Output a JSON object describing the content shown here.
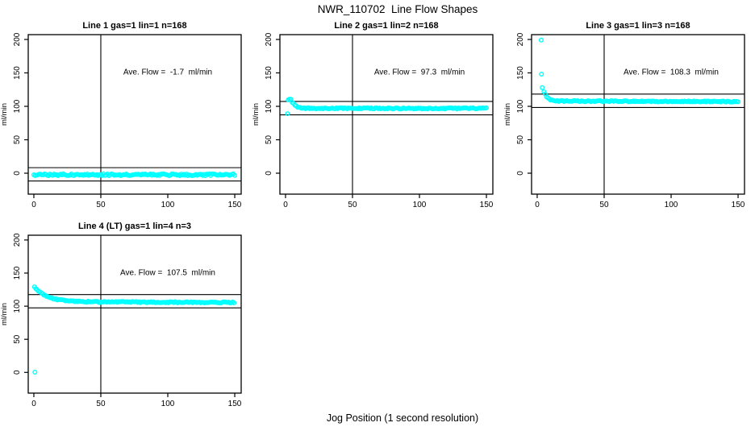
{
  "figure": {
    "title": "NWR_110702  Line Flow Shapes",
    "xlabel": "Jog Position (1 second resolution)",
    "background_color": "#ffffff",
    "point_color": "#00ffff",
    "axis_color": "#000000",
    "ref_line_color": "#000000"
  },
  "chart_data": [
    {
      "type": "scatter",
      "panel": "top-left",
      "title": "Line 1 gas=1 lin=1 n=168",
      "annotation": "Ave. Flow =  -1.7  ml/min",
      "ave_flow_ml_min": -1.7,
      "n": 168,
      "ylabel": "ml/min",
      "xticks": [
        0,
        50,
        100,
        150
      ],
      "yticks": [
        0,
        50,
        100,
        150,
        200
      ],
      "xlim": [
        -4.2,
        154.8
      ],
      "ylim": [
        -31.3,
        207.2
      ],
      "vline_x": 50,
      "hlines_y": [
        8.3,
        -11.7
      ],
      "annotation_center": {
        "x": 100,
        "y": 150
      },
      "series": {
        "name": "flow",
        "marker": "open-circle",
        "t_start": 0,
        "t_end": 150,
        "step": 1,
        "steady_y": -2.3,
        "start_amp": 0,
        "flat_until": 0,
        "decay_tau": 1,
        "slope": 0,
        "noise": 1.4,
        "seed": 11
      },
      "outliers": []
    },
    {
      "type": "scatter",
      "panel": "top-middle",
      "title": "Line 2 gas=1 lin=2 n=168",
      "annotation": "Ave. Flow =  97.3  ml/min",
      "ave_flow_ml_min": 97.3,
      "n": 168,
      "ylabel": "ml/min",
      "xticks": [
        0,
        50,
        100,
        150
      ],
      "yticks": [
        0,
        50,
        100,
        150,
        200
      ],
      "xlim": [
        -4.2,
        154.8
      ],
      "ylim": [
        -31.3,
        207.2
      ],
      "vline_x": 50,
      "hlines_y": [
        107.3,
        87.3
      ],
      "annotation_center": {
        "x": 100,
        "y": 150
      },
      "series": {
        "name": "flow",
        "marker": "open-circle",
        "t_start": 2,
        "t_end": 150,
        "step": 1,
        "steady_y": 96.9,
        "start_amp": 13.5,
        "flat_until": 4,
        "decay_tau": 3,
        "slope": 0,
        "noise": 0.9,
        "seed": 22
      },
      "outliers": [
        [
          1.5,
          89
        ]
      ]
    },
    {
      "type": "scatter",
      "panel": "top-right",
      "title": "Line 3 gas=1 lin=3 n=168",
      "annotation": "Ave. Flow =  108.3  ml/min",
      "ave_flow_ml_min": 108.3,
      "n": 168,
      "ylabel": "ml/min",
      "xticks": [
        0,
        50,
        100,
        150
      ],
      "yticks": [
        0,
        50,
        100,
        150,
        200
      ],
      "xlim": [
        -4.2,
        154.8
      ],
      "ylim": [
        -31.3,
        207.2
      ],
      "vline_x": 50,
      "hlines_y": [
        118.3,
        98.3
      ],
      "annotation_center": {
        "x": 100,
        "y": 150
      },
      "series": {
        "name": "flow",
        "marker": "open-circle",
        "t_start": 5,
        "t_end": 150,
        "step": 1,
        "steady_y": 108.0,
        "start_amp": 13.5,
        "flat_until": 5.5,
        "decay_tau": 2.2,
        "slope": -0.006,
        "noise": 0.8,
        "seed": 33
      },
      "outliers": [
        [
          3,
          199
        ],
        [
          3.2,
          148
        ],
        [
          3.7,
          128
        ]
      ]
    },
    {
      "type": "scatter",
      "panel": "bottom-left",
      "title": "Line 4 (LT) gas=1 lin=4 n=3",
      "annotation": "Ave. Flow =  107.5  ml/min",
      "ave_flow_ml_min": 107.5,
      "n": 3,
      "ylabel": "ml/min",
      "xticks": [
        0,
        50,
        100,
        150
      ],
      "yticks": [
        0,
        50,
        100,
        150,
        200
      ],
      "xlim": [
        -4.2,
        154.8
      ],
      "ylim": [
        -31.3,
        207.2
      ],
      "vline_x": 50,
      "hlines_y": [
        117.5,
        97.5
      ],
      "annotation_center": {
        "x": 100,
        "y": 150
      },
      "series": {
        "name": "flow",
        "marker": "open-circle",
        "t_start": 0.5,
        "t_end": 150,
        "step": 1,
        "steady_y": 106.8,
        "start_amp": 22.5,
        "flat_until": 0.5,
        "decay_tau": 9,
        "slope": -0.008,
        "noise": 0.9,
        "seed": 44
      },
      "outliers": [
        [
          0.8,
          0.3
        ]
      ]
    }
  ]
}
